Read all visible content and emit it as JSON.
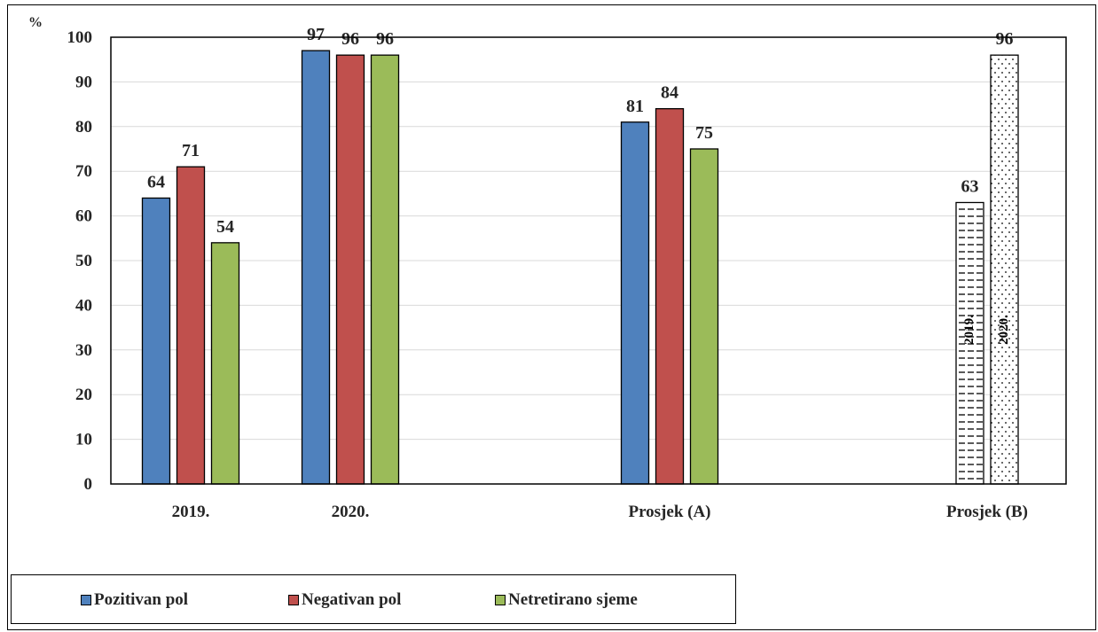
{
  "chart_data": {
    "type": "bar",
    "ylabel": "%",
    "ylim": [
      0,
      100
    ],
    "yticks": [
      0,
      10,
      20,
      30,
      40,
      50,
      60,
      70,
      80,
      90,
      100
    ],
    "grid": true,
    "groups": [
      {
        "label": "2019.",
        "values": [
          64,
          71,
          54
        ]
      },
      {
        "label": "2020.",
        "values": [
          97,
          96,
          96
        ]
      },
      {
        "label": "Prosjek  (A)",
        "values": [
          81,
          84,
          75
        ]
      },
      {
        "label": "Prosjek (B)",
        "values": [
          63,
          96
        ],
        "bar_labels": [
          "2019.",
          "2020."
        ],
        "patterns": [
          "dash",
          "dot"
        ]
      }
    ],
    "series": [
      {
        "name": "Pozitivan pol",
        "color": "#4f81bd"
      },
      {
        "name": "Negativan pol",
        "color": "#c0504d"
      },
      {
        "name": "Netretirano sjeme",
        "color": "#9bbb59"
      }
    ],
    "legend_position": "bottom-left"
  }
}
